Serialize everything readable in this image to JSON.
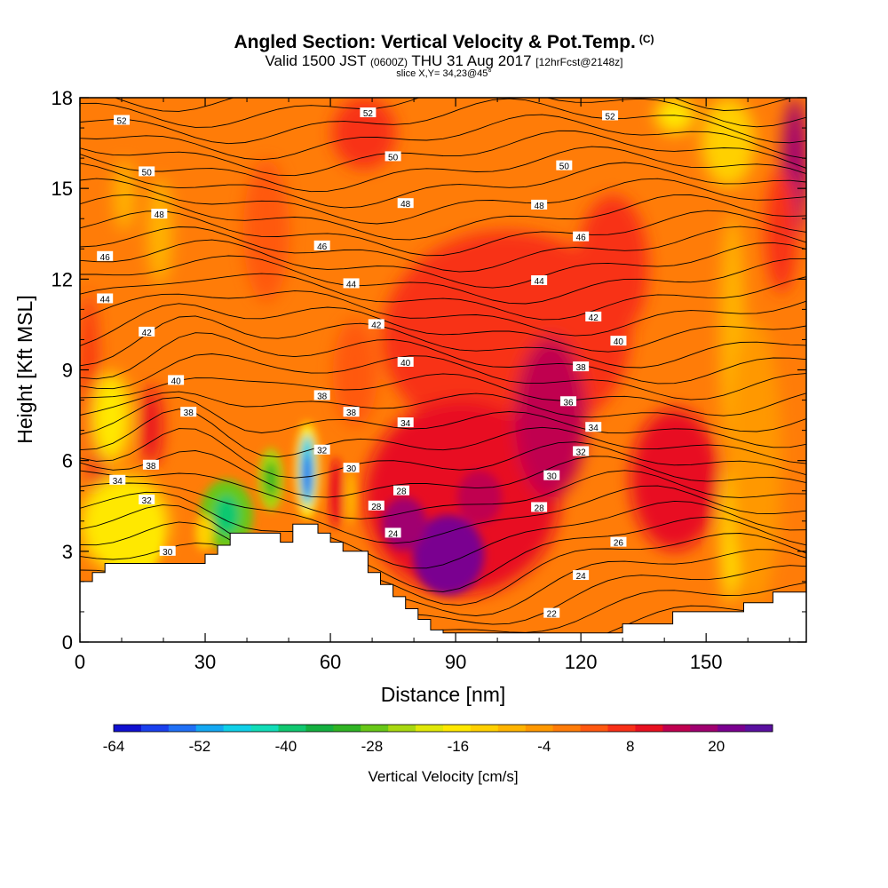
{
  "header": {
    "title_main": "Angled Section: Vertical Velocity & Pot.Temp.",
    "title_c": "(C)",
    "valid_a": "Valid 1500 JST",
    "valid_utc": "(0600Z)",
    "valid_b": "THU 31 Aug 2017",
    "valid_fcst": "[12hrFcst@2148z]",
    "slice": "slice X,Y= 34,23@45°"
  },
  "chart_data": {
    "type": "heatmap",
    "title": "Angled Section: Vertical Velocity & Pot.Temp.",
    "xlabel": "Distance [nm]",
    "ylabel": "Height [Kft MSL]",
    "xlim": [
      0,
      174
    ],
    "ylim": [
      0,
      18
    ],
    "x_ticks": [
      0,
      30,
      60,
      90,
      120,
      150
    ],
    "y_ticks": [
      0,
      3,
      6,
      9,
      12,
      15,
      18
    ],
    "colorbar": {
      "title": "Vertical Velocity [cm/s]",
      "labels": [
        -64,
        -52,
        -40,
        -28,
        -16,
        -4,
        8,
        20
      ],
      "levels": [
        -64,
        -60,
        -56,
        -52,
        -48,
        -44,
        -40,
        -36,
        -32,
        -28,
        -24,
        -20,
        -16,
        -12,
        -8,
        -4,
        0,
        4,
        8,
        12,
        16,
        20,
        24
      ],
      "colors": [
        "#1010d0",
        "#1a40ee",
        "#2070f6",
        "#14a8f2",
        "#10d0e8",
        "#12ddb8",
        "#10c870",
        "#14b040",
        "#30b424",
        "#68c818",
        "#a8d810",
        "#e0e808",
        "#ffe800",
        "#ffd000",
        "#ffb400",
        "#ff9800",
        "#ff7c08",
        "#ff5810",
        "#f83018",
        "#e81020",
        "#c00050",
        "#a00070",
        "#7a0090",
        "#5a10a0"
      ]
    },
    "isentrope_labels": [
      {
        "x": 10,
        "y": 17.25,
        "v": "52"
      },
      {
        "x": 69,
        "y": 17.5,
        "v": "52"
      },
      {
        "x": 127,
        "y": 17.4,
        "v": "52"
      },
      {
        "x": 16,
        "y": 15.55,
        "v": "50"
      },
      {
        "x": 75,
        "y": 16.05,
        "v": "50"
      },
      {
        "x": 116,
        "y": 15.75,
        "v": "50"
      },
      {
        "x": 19,
        "y": 14.15,
        "v": "48"
      },
      {
        "x": 78,
        "y": 14.5,
        "v": "48"
      },
      {
        "x": 110,
        "y": 14.45,
        "v": "48"
      },
      {
        "x": 6,
        "y": 12.75,
        "v": "46"
      },
      {
        "x": 58,
        "y": 13.1,
        "v": "46"
      },
      {
        "x": 120,
        "y": 13.4,
        "v": "46"
      },
      {
        "x": 6,
        "y": 11.35,
        "v": "44"
      },
      {
        "x": 65,
        "y": 11.85,
        "v": "44"
      },
      {
        "x": 110,
        "y": 11.95,
        "v": "44"
      },
      {
        "x": 16,
        "y": 10.25,
        "v": "42"
      },
      {
        "x": 71,
        "y": 10.5,
        "v": "42"
      },
      {
        "x": 123,
        "y": 10.75,
        "v": "42"
      },
      {
        "x": 78,
        "y": 9.25,
        "v": "40"
      },
      {
        "x": 129,
        "y": 9.95,
        "v": "40"
      },
      {
        "x": 23,
        "y": 8.65,
        "v": "40"
      },
      {
        "x": 120,
        "y": 9.1,
        "v": "38"
      },
      {
        "x": 58,
        "y": 8.15,
        "v": "38"
      },
      {
        "x": 65,
        "y": 7.6,
        "v": "38"
      },
      {
        "x": 26,
        "y": 7.6,
        "v": "38"
      },
      {
        "x": 17,
        "y": 5.85,
        "v": "38"
      },
      {
        "x": 117,
        "y": 7.95,
        "v": "36"
      },
      {
        "x": 78,
        "y": 7.25,
        "v": "34"
      },
      {
        "x": 123,
        "y": 7.1,
        "v": "34"
      },
      {
        "x": 9,
        "y": 5.35,
        "v": "34"
      },
      {
        "x": 58,
        "y": 6.35,
        "v": "32"
      },
      {
        "x": 120,
        "y": 6.3,
        "v": "32"
      },
      {
        "x": 16,
        "y": 4.7,
        "v": "32"
      },
      {
        "x": 65,
        "y": 5.75,
        "v": "30"
      },
      {
        "x": 113,
        "y": 5.5,
        "v": "30"
      },
      {
        "x": 21,
        "y": 3.0,
        "v": "30"
      },
      {
        "x": 77,
        "y": 5.0,
        "v": "28"
      },
      {
        "x": 71,
        "y": 4.5,
        "v": "28"
      },
      {
        "x": 110,
        "y": 4.45,
        "v": "28"
      },
      {
        "x": 75,
        "y": 3.6,
        "v": "24"
      },
      {
        "x": 129,
        "y": 3.3,
        "v": "26"
      },
      {
        "x": 120,
        "y": 2.2,
        "v": "24"
      },
      {
        "x": 113,
        "y": 0.95,
        "v": "22"
      }
    ],
    "terrain_profile": {
      "x": [
        0,
        3,
        3,
        6,
        6,
        30,
        30,
        33,
        33,
        36,
        36,
        48,
        48,
        51,
        51,
        57,
        57,
        60,
        60,
        63,
        63,
        69,
        69,
        72,
        72,
        75,
        75,
        78,
        78,
        81,
        81,
        84,
        84,
        87,
        87,
        130,
        130,
        142,
        142,
        159,
        159,
        166,
        166,
        174
      ],
      "height": [
        2.0,
        2.0,
        2.3,
        2.3,
        2.6,
        2.6,
        2.9,
        2.9,
        3.2,
        3.2,
        3.6,
        3.6,
        3.3,
        3.3,
        3.9,
        3.9,
        3.6,
        3.6,
        3.3,
        3.3,
        3.0,
        3.0,
        2.3,
        2.3,
        1.9,
        1.9,
        1.5,
        1.5,
        1.1,
        1.1,
        0.75,
        0.75,
        0.4,
        0.4,
        0.3,
        0.3,
        0.6,
        0.6,
        1.0,
        1.0,
        1.3,
        1.3,
        1.65,
        1.65
      ]
    }
  }
}
